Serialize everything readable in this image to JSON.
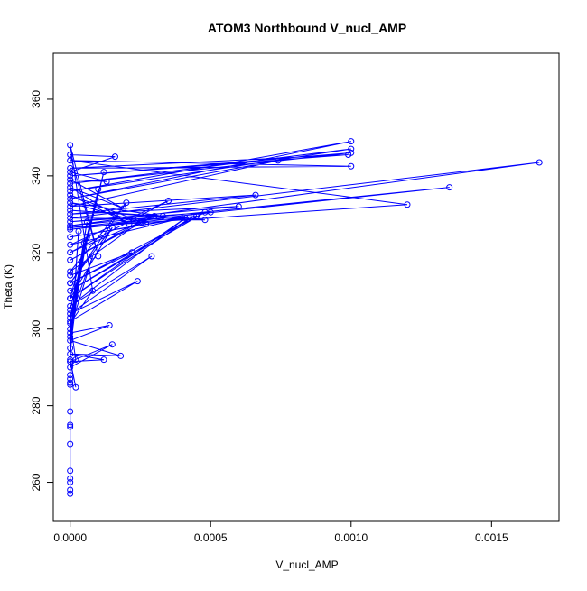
{
  "chart_data": {
    "type": "line",
    "title": "ATOM3 Northbound V_nucl_AMP",
    "xlabel": "V_nucl_AMP",
    "ylabel": "Theta (K)",
    "xlim": [
      -6e-05,
      0.00174
    ],
    "ylim": [
      250,
      372
    ],
    "xticks": [
      0.0,
      0.0005,
      0.001,
      0.0015
    ],
    "xtick_labels": [
      "0.0000",
      "0.0005",
      "0.0010",
      "0.0015"
    ],
    "yticks": [
      260,
      280,
      300,
      320,
      340,
      360
    ],
    "ytick_labels": [
      "260",
      "280",
      "300",
      "320",
      "340",
      "360"
    ],
    "grid": false,
    "marker": "open-circle",
    "series": [
      {
        "color": "#0000ff",
        "x": [
          0.0,
          0.0,
          0.0,
          0.0,
          0.0,
          0.0,
          0.0,
          0.0,
          0.0,
          0.0,
          0.0,
          0.0,
          0.0,
          0.0,
          2e-05,
          0.0,
          3e-05,
          0.0,
          5e-05,
          0.0,
          6e-05,
          0.0,
          8e-05,
          0.0,
          0.0001,
          0.0,
          0.00012,
          0.0,
          0.00015,
          0.0,
          0.0002,
          0.0,
          0.00025,
          0.0,
          0.0003,
          0.0,
          0.00035,
          0.0,
          0.0004,
          0.0,
          0.00045,
          0.0,
          0.0005,
          0.0,
          0.0006,
          0.0,
          0.00066,
          0.0,
          0.00074,
          0.0,
          0.001,
          0.0,
          0.001,
          0.0,
          0.001,
          0.0,
          0.00099,
          0.0,
          0.001,
          0.0,
          0.0012,
          0.0,
          0.00135,
          0.0,
          0.00167,
          0.0,
          0.00048,
          0.0,
          0.00033,
          0.0,
          0.00027,
          0.0,
          0.00021,
          0.0,
          0.00019,
          0.0,
          0.00013,
          0.0,
          0.00016,
          0.0,
          0.0001,
          0.0,
          8e-05,
          0.0,
          6e-05,
          0.0,
          0.00014,
          0.0,
          0.00018,
          0.0,
          0.00012,
          0.0,
          0.00015,
          0.0,
          2e-05,
          0.0,
          0.00024,
          0.0,
          0.00029,
          0.0,
          0.00041,
          0.0,
          0.00044,
          0.0,
          0.00048,
          0.0,
          0.00022,
          0.0
        ],
        "y": [
          257,
          258,
          260,
          261,
          263,
          270,
          274.5,
          275,
          278.5,
          285.5,
          286,
          287,
          288,
          291.5,
          284.8,
          292,
          325.5,
          295,
          322.5,
          298,
          324,
          300,
          319,
          303,
          336.5,
          305,
          341,
          308,
          326.5,
          312,
          333,
          315,
          328,
          318,
          329.5,
          320,
          333.5,
          322,
          329,
          324,
          329.5,
          326,
          330.5,
          328,
          332,
          330,
          335,
          332,
          344,
          334,
          349,
          336,
          347,
          338,
          346,
          340,
          345.5,
          342,
          342.5,
          344,
          332.5,
          326.5,
          337,
          327,
          343.5,
          329,
          328.5,
          331,
          329.5,
          333,
          327.5,
          335,
          327.5,
          337,
          331.5,
          339,
          338.5,
          341,
          345,
          345.5,
          319,
          348,
          310,
          301.5,
          328,
          299,
          301,
          297,
          293,
          293.5,
          292,
          291.5,
          296,
          290,
          292,
          302,
          312.5,
          304,
          319,
          306,
          329,
          308,
          329.5,
          310,
          330.5,
          312,
          320,
          314
        ]
      }
    ]
  }
}
